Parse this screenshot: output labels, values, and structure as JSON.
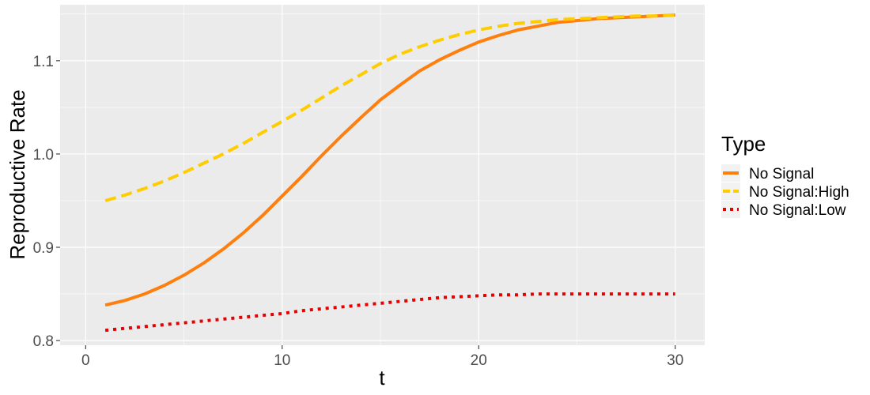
{
  "chart_data": {
    "type": "line",
    "xlabel": "t",
    "ylabel": "Reproductive Rate",
    "xlim": [
      -1.3,
      31.5
    ],
    "ylim": [
      0.795,
      1.16
    ],
    "x_ticks": [
      0,
      10,
      20,
      30
    ],
    "x_tick_labels": [
      "0",
      "10",
      "20",
      "30"
    ],
    "y_ticks": [
      0.8,
      0.9,
      1.0,
      1.1
    ],
    "y_tick_labels": [
      "0.8",
      "0.9",
      "1.0",
      "1.1"
    ],
    "grid": true,
    "background": "#ebebeb",
    "legend": {
      "title": "Type",
      "position": "right"
    },
    "x": [
      1,
      2,
      3,
      4,
      5,
      6,
      7,
      8,
      9,
      10,
      11,
      12,
      13,
      14,
      15,
      16,
      17,
      18,
      19,
      20,
      21,
      22,
      23,
      24,
      25,
      26,
      27,
      28,
      29,
      30
    ],
    "series": [
      {
        "name": "No Signal",
        "color": "#ff7f0e",
        "dash": "solid",
        "values": [
          0.838,
          0.843,
          0.85,
          0.859,
          0.87,
          0.883,
          0.898,
          0.915,
          0.934,
          0.955,
          0.976,
          0.998,
          1.019,
          1.039,
          1.058,
          1.074,
          1.089,
          1.101,
          1.111,
          1.12,
          1.127,
          1.133,
          1.137,
          1.141,
          1.143,
          1.145,
          1.146,
          1.147,
          1.148,
          1.149
        ]
      },
      {
        "name": "No Signal:High",
        "color": "#ffcc00",
        "dash": "dashed",
        "values": [
          0.95,
          0.956,
          0.963,
          0.971,
          0.98,
          0.99,
          1.0,
          1.011,
          1.023,
          1.035,
          1.047,
          1.06,
          1.073,
          1.085,
          1.097,
          1.107,
          1.115,
          1.122,
          1.128,
          1.133,
          1.137,
          1.14,
          1.142,
          1.144,
          1.145,
          1.146,
          1.147,
          1.148,
          1.148,
          1.149
        ]
      },
      {
        "name": "No Signal:Low",
        "color": "#e60000",
        "dash": "dotted",
        "values": [
          0.811,
          0.813,
          0.815,
          0.817,
          0.819,
          0.821,
          0.823,
          0.825,
          0.827,
          0.829,
          0.832,
          0.834,
          0.836,
          0.838,
          0.84,
          0.842,
          0.844,
          0.846,
          0.847,
          0.848,
          0.849,
          0.849,
          0.85,
          0.85,
          0.85,
          0.85,
          0.85,
          0.85,
          0.85,
          0.85
        ]
      }
    ]
  }
}
